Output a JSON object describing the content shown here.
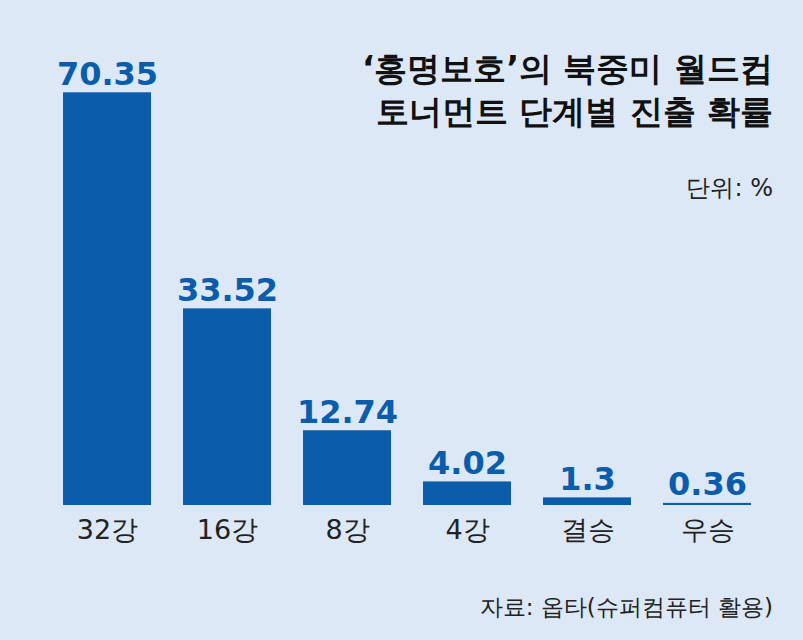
{
  "chart_data": {
    "type": "bar",
    "title": "‘홍명보호’의 북중미 월드컵\n토너먼트 단계별 진출 확률",
    "subtitle": "단위: %",
    "source": "자료: 옵타(슈퍼컴퓨터 활용)",
    "categories": [
      "32강",
      "16강",
      "8강",
      "4강",
      "결승",
      "우승"
    ],
    "values": [
      70.35,
      33.52,
      12.74,
      4.02,
      1.3,
      0.36
    ],
    "color": "#0b5cab",
    "ylim": [
      0,
      75
    ],
    "yticks": [],
    "data_labels": true,
    "tick_labels": "x",
    "grid": false
  }
}
